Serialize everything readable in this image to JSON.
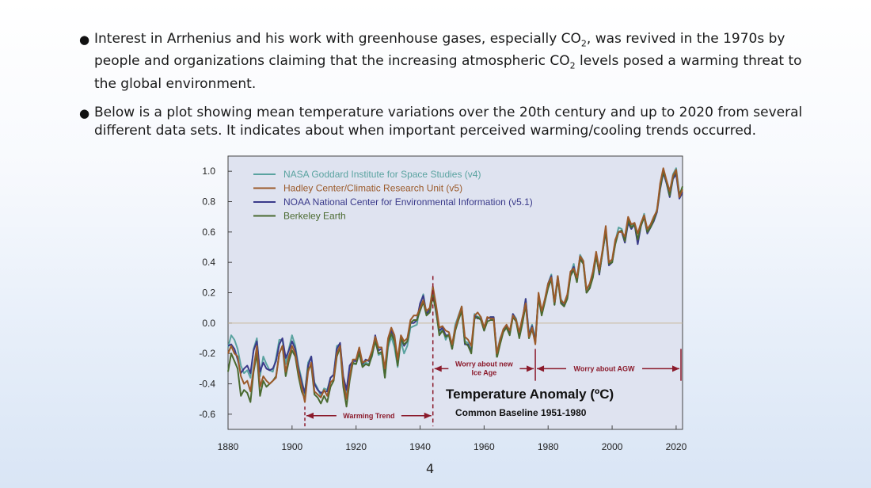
{
  "bullets": {
    "b1": {
      "t1": "Interest in Arrhenius and his work with greenhouse gases, especially CO",
      "sub1": "2",
      "t2": ", was revived in the 1970s by people and organizations claiming that the increasing atmospheric CO",
      "sub2": "2",
      "t3": " levels posed a warming threat to the global environment."
    },
    "b2": "Below is a plot showing mean temperature variations over the 20th century and up to 2020 from several different data sets.  It indicates about when important perceived warming/cooling trends occurred."
  },
  "page_number": "4",
  "chart_data": {
    "type": "line",
    "title": "Temperature Anomaly (ºC)",
    "subtitle": "Common Baseline 1951-1980",
    "xlabel": "",
    "ylabel": "",
    "xlim": [
      1880,
      2022
    ],
    "ylim": [
      -0.7,
      1.1
    ],
    "x_ticks": [
      "1880",
      "1900",
      "1920",
      "1940",
      "1960",
      "1980",
      "2000",
      "2020"
    ],
    "y_ticks": [
      "1.0",
      "0.8",
      "0.6",
      "0.4",
      "0.2",
      "0.0",
      "-0.2",
      "-0.4",
      "-0.6"
    ],
    "legend_position": "top-left",
    "grid": false,
    "colors": {
      "plot_bg": "#dfe3f0",
      "zero_line": "#c9b89a",
      "annotation": "#8b1a2b"
    },
    "x_start": 1880,
    "series": [
      {
        "name": "NASA Goddard Institute for Space Studies (v4)",
        "color": "#5aa3a0",
        "values": [
          -0.16,
          -0.08,
          -0.11,
          -0.17,
          -0.28,
          -0.33,
          -0.31,
          -0.36,
          -0.17,
          -0.1,
          -0.35,
          -0.22,
          -0.27,
          -0.31,
          -0.32,
          -0.23,
          -0.11,
          -0.11,
          -0.27,
          -0.17,
          -0.08,
          -0.15,
          -0.28,
          -0.37,
          -0.47,
          -0.26,
          -0.22,
          -0.39,
          -0.43,
          -0.48,
          -0.43,
          -0.44,
          -0.36,
          -0.34,
          -0.15,
          -0.14,
          -0.36,
          -0.46,
          -0.29,
          -0.27,
          -0.27,
          -0.19,
          -0.28,
          -0.26,
          -0.27,
          -0.22,
          -0.1,
          -0.21,
          -0.2,
          -0.36,
          -0.16,
          -0.09,
          -0.16,
          -0.29,
          -0.12,
          -0.2,
          -0.15,
          -0.03,
          -0.02,
          -0.01,
          0.12,
          0.19,
          0.06,
          0.08,
          0.2,
          0.09,
          -0.07,
          -0.03,
          -0.11,
          -0.07,
          -0.15,
          -0.01,
          0.05,
          0.11,
          -0.12,
          -0.13,
          -0.18,
          0.06,
          0.04,
          0.04,
          -0.03,
          0.03,
          0.04,
          0.04,
          -0.2,
          -0.1,
          -0.05,
          -0.02,
          -0.07,
          0.06,
          0.03,
          -0.07,
          0.02,
          0.16,
          -0.07,
          -0.01,
          -0.1,
          0.18,
          0.07,
          0.16,
          0.26,
          0.32,
          0.14,
          0.31,
          0.16,
          0.12,
          0.18,
          0.32,
          0.39,
          0.27,
          0.45,
          0.41,
          0.22,
          0.24,
          0.31,
          0.45,
          0.33,
          0.47,
          0.62,
          0.4,
          0.4,
          0.54,
          0.63,
          0.62,
          0.54,
          0.68,
          0.64,
          0.66,
          0.54,
          0.65,
          0.72,
          0.61,
          0.64,
          0.68,
          0.75,
          0.9,
          1.01,
          0.92,
          0.85,
          0.98,
          1.02,
          0.85,
          0.89
        ]
      },
      {
        "name": "Hadley Center/Climatic Research Unit (v5)",
        "color": "#9b5a2a",
        "values": [
          -0.2,
          -0.15,
          -0.2,
          -0.22,
          -0.35,
          -0.4,
          -0.38,
          -0.45,
          -0.3,
          -0.15,
          -0.42,
          -0.35,
          -0.38,
          -0.4,
          -0.38,
          -0.36,
          -0.2,
          -0.15,
          -0.32,
          -0.22,
          -0.15,
          -0.2,
          -0.32,
          -0.42,
          -0.52,
          -0.32,
          -0.26,
          -0.45,
          -0.47,
          -0.49,
          -0.44,
          -0.48,
          -0.39,
          -0.37,
          -0.2,
          -0.15,
          -0.38,
          -0.5,
          -0.35,
          -0.24,
          -0.24,
          -0.16,
          -0.26,
          -0.25,
          -0.24,
          -0.18,
          -0.09,
          -0.16,
          -0.16,
          -0.3,
          -0.1,
          -0.03,
          -0.08,
          -0.24,
          -0.08,
          -0.12,
          -0.1,
          0.02,
          0.05,
          0.05,
          0.1,
          0.15,
          0.08,
          0.1,
          0.24,
          0.12,
          -0.03,
          -0.02,
          -0.05,
          -0.06,
          -0.14,
          -0.03,
          0.04,
          0.11,
          -0.09,
          -0.11,
          -0.15,
          0.05,
          0.07,
          0.04,
          -0.03,
          0.04,
          0.03,
          0.03,
          -0.2,
          -0.11,
          -0.04,
          -0.01,
          -0.05,
          0.05,
          0.02,
          -0.06,
          0.04,
          0.13,
          -0.09,
          -0.03,
          -0.14,
          0.2,
          0.08,
          0.16,
          0.26,
          0.3,
          0.14,
          0.31,
          0.15,
          0.13,
          0.19,
          0.34,
          0.36,
          0.3,
          0.44,
          0.41,
          0.22,
          0.26,
          0.34,
          0.47,
          0.35,
          0.48,
          0.64,
          0.4,
          0.42,
          0.55,
          0.6,
          0.6,
          0.57,
          0.7,
          0.65,
          0.66,
          0.59,
          0.66,
          0.71,
          0.62,
          0.65,
          0.7,
          0.74,
          0.92,
          1.02,
          0.94,
          0.87,
          0.97,
          1.01,
          0.83,
          0.88
        ]
      },
      {
        "name": "NOAA National Center for Environmental Information (v5.1)",
        "color": "#3a3a8a",
        "values": [
          -0.15,
          -0.14,
          -0.17,
          -0.24,
          -0.33,
          -0.3,
          -0.28,
          -0.33,
          -0.18,
          -0.12,
          -0.32,
          -0.26,
          -0.3,
          -0.31,
          -0.3,
          -0.25,
          -0.14,
          -0.1,
          -0.23,
          -0.18,
          -0.12,
          -0.17,
          -0.3,
          -0.39,
          -0.46,
          -0.28,
          -0.22,
          -0.4,
          -0.44,
          -0.46,
          -0.45,
          -0.45,
          -0.36,
          -0.34,
          -0.17,
          -0.13,
          -0.35,
          -0.44,
          -0.28,
          -0.25,
          -0.25,
          -0.17,
          -0.27,
          -0.24,
          -0.25,
          -0.2,
          -0.08,
          -0.18,
          -0.17,
          -0.33,
          -0.12,
          -0.05,
          -0.12,
          -0.25,
          -0.1,
          -0.15,
          -0.12,
          0.0,
          0.0,
          0.02,
          0.13,
          0.18,
          0.06,
          0.09,
          0.19,
          0.07,
          -0.05,
          -0.03,
          -0.08,
          -0.08,
          -0.17,
          -0.04,
          0.03,
          0.1,
          -0.14,
          -0.14,
          -0.19,
          0.05,
          0.03,
          0.03,
          -0.05,
          0.03,
          0.04,
          0.04,
          -0.21,
          -0.12,
          -0.06,
          -0.02,
          -0.07,
          0.06,
          0.02,
          -0.08,
          0.02,
          0.16,
          -0.08,
          -0.02,
          -0.12,
          0.18,
          0.06,
          0.15,
          0.26,
          0.31,
          0.12,
          0.3,
          0.14,
          0.11,
          0.18,
          0.33,
          0.37,
          0.28,
          0.44,
          0.4,
          0.2,
          0.23,
          0.32,
          0.45,
          0.32,
          0.47,
          0.6,
          0.38,
          0.4,
          0.53,
          0.6,
          0.6,
          0.53,
          0.66,
          0.62,
          0.65,
          0.52,
          0.64,
          0.7,
          0.59,
          0.63,
          0.67,
          0.73,
          0.88,
          0.99,
          0.92,
          0.83,
          0.95,
          0.98,
          0.82,
          0.86
        ]
      },
      {
        "name": "Berkeley Earth",
        "color": "#4a6a30",
        "values": [
          -0.32,
          -0.2,
          -0.25,
          -0.3,
          -0.48,
          -0.44,
          -0.46,
          -0.52,
          -0.32,
          -0.2,
          -0.48,
          -0.38,
          -0.42,
          -0.4,
          -0.38,
          -0.35,
          -0.2,
          -0.15,
          -0.35,
          -0.25,
          -0.18,
          -0.22,
          -0.35,
          -0.45,
          -0.5,
          -0.3,
          -0.28,
          -0.47,
          -0.49,
          -0.53,
          -0.48,
          -0.52,
          -0.42,
          -0.38,
          -0.22,
          -0.16,
          -0.42,
          -0.55,
          -0.38,
          -0.26,
          -0.27,
          -0.2,
          -0.29,
          -0.27,
          -0.28,
          -0.21,
          -0.12,
          -0.2,
          -0.19,
          -0.36,
          -0.13,
          -0.07,
          -0.12,
          -0.28,
          -0.1,
          -0.14,
          -0.12,
          0.0,
          0.02,
          0.02,
          0.08,
          0.14,
          0.05,
          0.07,
          0.18,
          0.08,
          -0.08,
          -0.05,
          -0.09,
          -0.08,
          -0.17,
          -0.05,
          0.02,
          0.08,
          -0.13,
          -0.15,
          -0.2,
          0.03,
          0.04,
          0.02,
          -0.05,
          0.01,
          0.02,
          0.02,
          -0.23,
          -0.14,
          -0.06,
          -0.03,
          -0.08,
          0.04,
          0.01,
          -0.1,
          0.0,
          0.12,
          -0.1,
          -0.04,
          -0.13,
          0.17,
          0.05,
          0.14,
          0.23,
          0.29,
          0.12,
          0.29,
          0.13,
          0.11,
          0.16,
          0.31,
          0.35,
          0.27,
          0.42,
          0.39,
          0.2,
          0.23,
          0.3,
          0.44,
          0.33,
          0.46,
          0.61,
          0.39,
          0.4,
          0.52,
          0.6,
          0.61,
          0.54,
          0.68,
          0.63,
          0.65,
          0.55,
          0.64,
          0.7,
          0.6,
          0.63,
          0.68,
          0.74,
          0.89,
          1.0,
          0.93,
          0.84,
          0.96,
          1.0,
          0.84,
          0.9
        ]
      }
    ],
    "annotations": {
      "warming_trend": {
        "label": "Warming Trend",
        "x_from": 1904,
        "x_to": 1944
      },
      "ice_age": {
        "label_line1": "Worry about new",
        "label_line2": "Ice Age",
        "x_from": 1944,
        "x_to": 1976
      },
      "agw": {
        "label": "Worry about AGW",
        "x_from": 1976,
        "x_to": 2022
      }
    }
  }
}
